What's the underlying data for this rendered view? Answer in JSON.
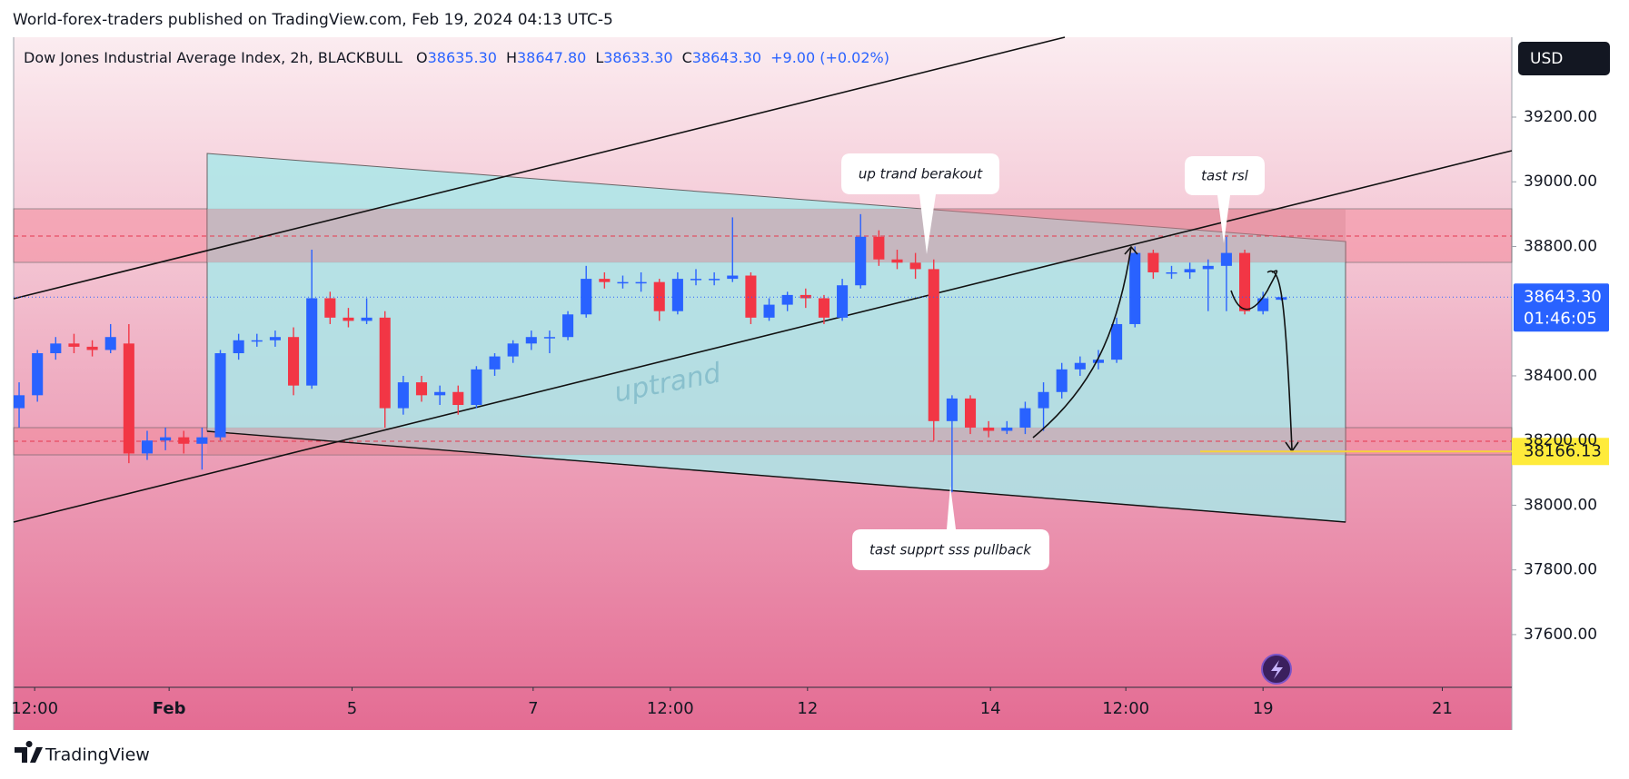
{
  "chart_data": {
    "type": "candlestick",
    "published": "World-forex-traders published on TradingView.com, Feb 19, 2024 04:13 UTC-5",
    "title": "Dow Jones Industrial Average Index, 2h, BLACKBULL",
    "header_ohlc": [
      {
        "key": "O",
        "value": "38635.30"
      },
      {
        "key": "H",
        "value": "38647.80"
      },
      {
        "key": "L",
        "value": "38633.30"
      },
      {
        "key": "C",
        "value": "38643.30"
      }
    ],
    "change": "+9.00 (+0.02%)",
    "currency": "USD",
    "up_color": "#2962ff",
    "down_color": "#f23645",
    "ohlc": [
      [
        38300,
        38380,
        38240,
        38340
      ],
      [
        38340,
        38480,
        38320,
        38470
      ],
      [
        38470,
        38520,
        38450,
        38500
      ],
      [
        38500,
        38530,
        38470,
        38490
      ],
      [
        38490,
        38510,
        38460,
        38480
      ],
      [
        38480,
        38560,
        38470,
        38520
      ],
      [
        38500,
        38560,
        38130,
        38160
      ],
      [
        38160,
        38230,
        38140,
        38200
      ],
      [
        38200,
        38240,
        38170,
        38210
      ],
      [
        38210,
        38230,
        38160,
        38190
      ],
      [
        38190,
        38240,
        38110,
        38210
      ],
      [
        38210,
        38480,
        38200,
        38470
      ],
      [
        38470,
        38530,
        38450,
        38510
      ],
      [
        38510,
        38530,
        38490,
        38510
      ],
      [
        38510,
        38540,
        38490,
        38520
      ],
      [
        38520,
        38550,
        38340,
        38370
      ],
      [
        38370,
        38790,
        38360,
        38640
      ],
      [
        38640,
        38660,
        38560,
        38580
      ],
      [
        38580,
        38610,
        38550,
        38570
      ],
      [
        38570,
        38640,
        38560,
        38580
      ],
      [
        38580,
        38600,
        38240,
        38300
      ],
      [
        38300,
        38400,
        38280,
        38380
      ],
      [
        38380,
        38400,
        38320,
        38340
      ],
      [
        38340,
        38370,
        38310,
        38350
      ],
      [
        38350,
        38370,
        38280,
        38310
      ],
      [
        38310,
        38430,
        38300,
        38420
      ],
      [
        38420,
        38470,
        38400,
        38460
      ],
      [
        38460,
        38510,
        38440,
        38500
      ],
      [
        38500,
        38540,
        38480,
        38520
      ],
      [
        38520,
        38540,
        38470,
        38520
      ],
      [
        38520,
        38600,
        38510,
        38590
      ],
      [
        38590,
        38740,
        38580,
        38700
      ],
      [
        38700,
        38720,
        38670,
        38690
      ],
      [
        38690,
        38710,
        38670,
        38690
      ],
      [
        38690,
        38720,
        38660,
        38690
      ],
      [
        38690,
        38700,
        38570,
        38600
      ],
      [
        38600,
        38720,
        38590,
        38700
      ],
      [
        38700,
        38730,
        38680,
        38700
      ],
      [
        38700,
        38720,
        38680,
        38700
      ],
      [
        38700,
        38890,
        38690,
        38710
      ],
      [
        38710,
        38720,
        38560,
        38580
      ],
      [
        38580,
        38640,
        38570,
        38620
      ],
      [
        38620,
        38660,
        38600,
        38650
      ],
      [
        38650,
        38670,
        38610,
        38640
      ],
      [
        38640,
        38650,
        38560,
        38580
      ],
      [
        38580,
        38700,
        38570,
        38680
      ],
      [
        38680,
        38900,
        38670,
        38830
      ],
      [
        38830,
        38850,
        38740,
        38760
      ],
      [
        38760,
        38790,
        38730,
        38750
      ],
      [
        38750,
        38780,
        38700,
        38730
      ],
      [
        38730,
        38760,
        38200,
        38260
      ],
      [
        38260,
        38340,
        38040,
        38330
      ],
      [
        38330,
        38340,
        38220,
        38240
      ],
      [
        38240,
        38260,
        38210,
        38230
      ],
      [
        38230,
        38260,
        38220,
        38240
      ],
      [
        38240,
        38320,
        38220,
        38300
      ],
      [
        38300,
        38380,
        38230,
        38350
      ],
      [
        38350,
        38440,
        38330,
        38420
      ],
      [
        38420,
        38460,
        38400,
        38440
      ],
      [
        38440,
        38480,
        38420,
        38450
      ],
      [
        38450,
        38580,
        38440,
        38560
      ],
      [
        38560,
        38800,
        38550,
        38780
      ],
      [
        38780,
        38790,
        38700,
        38720
      ],
      [
        38720,
        38740,
        38700,
        38720
      ],
      [
        38720,
        38750,
        38700,
        38730
      ],
      [
        38730,
        38760,
        38600,
        38740
      ],
      [
        38740,
        38830,
        38600,
        38780
      ],
      [
        38780,
        38790,
        38590,
        38600
      ],
      [
        38600,
        38660,
        38590,
        38640
      ],
      [
        38635.3,
        38647.8,
        38633.3,
        38643.3
      ]
    ],
    "xlim": [
      -0.3,
      81.6
    ],
    "xticks": [
      {
        "value": 0.85,
        "label": "12:00"
      },
      {
        "value": 8.2,
        "label": "Feb"
      },
      {
        "value": 18.2,
        "label": "5"
      },
      {
        "value": 28.1,
        "label": "7"
      },
      {
        "value": 35.6,
        "label": "12:00"
      },
      {
        "value": 43.1,
        "label": "12"
      },
      {
        "value": 53.1,
        "label": "14"
      },
      {
        "value": 60.5,
        "label": "12:00"
      },
      {
        "value": 68,
        "label": "19"
      },
      {
        "value": 77.8,
        "label": "21"
      }
    ],
    "ylim": [
      37437,
      39447
    ],
    "yticks": [
      {
        "value": 37600,
        "label": "37600.00"
      },
      {
        "value": 37800,
        "label": "37800.00"
      },
      {
        "value": 38000,
        "label": "38000.00"
      },
      {
        "value": 38200,
        "label": "38200.00"
      },
      {
        "value": 38400,
        "label": "38400.00"
      },
      {
        "value": 38800,
        "label": "38800.00"
      },
      {
        "value": 39000,
        "label": "39000.00"
      },
      {
        "value": 39200,
        "label": "39200.00"
      }
    ],
    "last_price": {
      "value": 38643.3,
      "label": "38643.30"
    },
    "countdown": "01:46:05",
    "target_price": {
      "value": 38166.13,
      "label": "38166.13"
    },
    "annotations": [
      "up trand berakout",
      "tast rsl",
      "tast supprt sss pullback",
      "uptrand"
    ],
    "footer": "TradingView"
  }
}
